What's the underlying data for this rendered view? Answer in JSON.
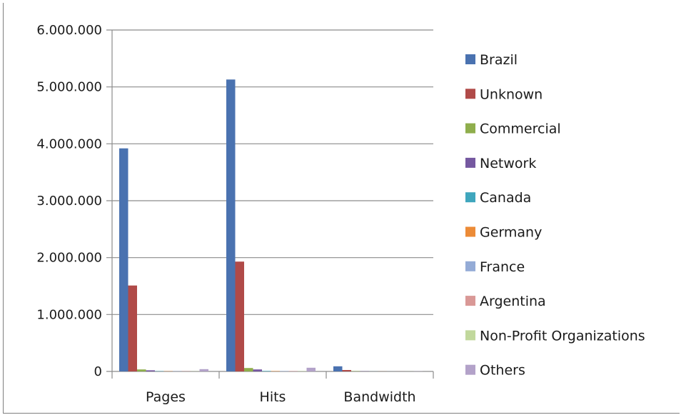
{
  "chart_data": {
    "type": "bar",
    "categories": [
      "Pages",
      "Hits",
      "Bandwidth"
    ],
    "ylim": [
      0,
      6000000
    ],
    "y_ticks": [
      0,
      1000000,
      2000000,
      3000000,
      4000000,
      5000000,
      6000000
    ],
    "y_tick_labels": [
      "0",
      "1.000.000",
      "2.000.000",
      "3.000.000",
      "4.000.000",
      "5.000.000",
      "6.000.000"
    ],
    "grid": true,
    "legend_position": "right",
    "series": [
      {
        "name": "Brazil",
        "color": "#4a72b0",
        "values": [
          3920000,
          5130000,
          90000
        ]
      },
      {
        "name": "Unknown",
        "color": "#b04a48",
        "values": [
          1510000,
          1930000,
          25000
        ]
      },
      {
        "name": "Commercial",
        "color": "#8fae4c",
        "values": [
          35000,
          60000,
          5000
        ]
      },
      {
        "name": "Network",
        "color": "#7558a0",
        "values": [
          20000,
          35000,
          3000
        ]
      },
      {
        "name": "Canada",
        "color": "#3fa6bd",
        "values": [
          5000,
          8000,
          1000
        ]
      },
      {
        "name": "Germany",
        "color": "#ec8b37",
        "values": [
          4000,
          6000,
          1000
        ]
      },
      {
        "name": "France",
        "color": "#94abd6",
        "values": [
          4000,
          6000,
          1000
        ]
      },
      {
        "name": "Argentina",
        "color": "#d99896",
        "values": [
          4000,
          6000,
          1000
        ]
      },
      {
        "name": "Non-Profit Organizations",
        "color": "#c1d89c",
        "values": [
          3000,
          5000,
          1000
        ]
      },
      {
        "name": "Others",
        "color": "#b3a2c9",
        "values": [
          40000,
          65000,
          3000
        ]
      }
    ]
  }
}
